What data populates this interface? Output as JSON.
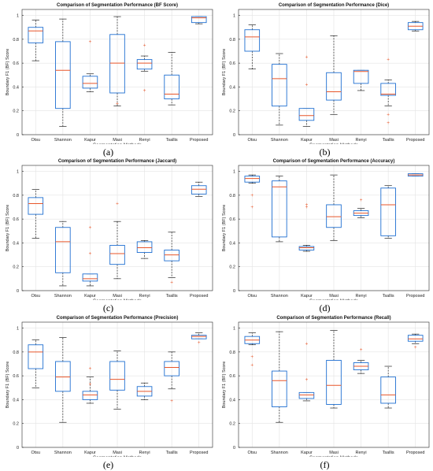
{
  "chart_data": [
    {
      "type": "box",
      "caption": "(a)",
      "title": "Comparison of Segmentation Performance (BF Score)",
      "xlabel": "Segmentation Methods",
      "ylabel": "Boundary F1 (BF) Score",
      "ylim": [
        0,
        1.05
      ],
      "yticks": [
        "0",
        "0.2",
        "0.4",
        "0.6",
        "0.8",
        "1"
      ],
      "grid": true,
      "categories": [
        "Otsu",
        "Shannon",
        "Kapur",
        "Masi",
        "Renyi",
        "Tsallis",
        "Proposed"
      ],
      "boxes": [
        {
          "min": 0.62,
          "q1": 0.77,
          "median": 0.87,
          "q3": 0.9,
          "max": 0.96,
          "outliers": []
        },
        {
          "min": 0.07,
          "q1": 0.22,
          "median": 0.54,
          "q3": 0.78,
          "max": 0.97,
          "outliers": []
        },
        {
          "min": 0.36,
          "q1": 0.39,
          "median": 0.43,
          "q3": 0.49,
          "max": 0.51,
          "outliers": [
            0.78
          ]
        },
        {
          "min": 0.24,
          "q1": 0.35,
          "median": 0.6,
          "q3": 0.84,
          "max": 0.99,
          "outliers": [
            0.26
          ]
        },
        {
          "min": 0.53,
          "q1": 0.55,
          "median": 0.6,
          "q3": 0.63,
          "max": 0.66,
          "outliers": [
            0.75,
            0.37
          ]
        },
        {
          "min": 0.25,
          "q1": 0.3,
          "median": 0.34,
          "q3": 0.5,
          "max": 0.69,
          "outliers": []
        },
        {
          "min": 0.93,
          "q1": 0.94,
          "median": 0.98,
          "q3": 0.99,
          "max": 0.99,
          "outliers": []
        }
      ]
    },
    {
      "type": "box",
      "caption": "(b)",
      "title": "Comparison of Segmentation Performance (Dice)",
      "xlabel": "Segmentation Methods",
      "ylabel": "Boundary F1 (BF) Score",
      "ylim": [
        0,
        1.05
      ],
      "yticks": [
        "0",
        "0.2",
        "0.4",
        "0.6",
        "0.8",
        "1"
      ],
      "grid": true,
      "categories": [
        "Otsu",
        "Shannon",
        "Kapur",
        "Masi",
        "Renyi",
        "Tsallis",
        "Proposed"
      ],
      "boxes": [
        {
          "min": 0.55,
          "q1": 0.7,
          "median": 0.82,
          "q3": 0.88,
          "max": 0.92,
          "outliers": []
        },
        {
          "min": 0.08,
          "q1": 0.24,
          "median": 0.47,
          "q3": 0.59,
          "max": 0.68,
          "outliers": []
        },
        {
          "min": 0.07,
          "q1": 0.12,
          "median": 0.16,
          "q3": 0.22,
          "max": 0.22,
          "outliers": [
            0.65,
            0.42
          ]
        },
        {
          "min": 0.17,
          "q1": 0.29,
          "median": 0.36,
          "q3": 0.52,
          "max": 0.83,
          "outliers": []
        },
        {
          "min": 0.37,
          "q1": 0.43,
          "median": 0.53,
          "q3": 0.54,
          "max": 0.54,
          "outliers": []
        },
        {
          "min": 0.24,
          "q1": 0.33,
          "median": 0.34,
          "q3": 0.43,
          "max": 0.46,
          "outliers": [
            0.63,
            0.17,
            0.1
          ]
        },
        {
          "min": 0.87,
          "q1": 0.88,
          "median": 0.91,
          "q3": 0.94,
          "max": 0.95,
          "outliers": []
        }
      ]
    },
    {
      "type": "box",
      "caption": "(c)",
      "title": "Comparison of Segmentation Performance (Jaccard)",
      "xlabel": "Segmentation Methods",
      "ylabel": "Boundary F1 (BF) Score",
      "ylim": [
        0,
        1.05
      ],
      "yticks": [
        "0",
        "0.2",
        "0.4",
        "0.6",
        "0.8",
        "1"
      ],
      "grid": true,
      "categories": [
        "Otsu",
        "Shannon",
        "Kapur",
        "Masi",
        "Renyi",
        "Tsallis",
        "Proposed"
      ],
      "boxes": [
        {
          "min": 0.44,
          "q1": 0.64,
          "median": 0.73,
          "q3": 0.78,
          "max": 0.85,
          "outliers": []
        },
        {
          "min": 0.04,
          "q1": 0.15,
          "median": 0.41,
          "q3": 0.53,
          "max": 0.58,
          "outliers": []
        },
        {
          "min": 0.04,
          "q1": 0.08,
          "median": 0.1,
          "q3": 0.14,
          "max": 0.14,
          "outliers": [
            0.53,
            0.31
          ]
        },
        {
          "min": 0.1,
          "q1": 0.22,
          "median": 0.31,
          "q3": 0.38,
          "max": 0.58,
          "outliers": [
            0.73
          ]
        },
        {
          "min": 0.27,
          "q1": 0.32,
          "median": 0.36,
          "q3": 0.41,
          "max": 0.42,
          "outliers": []
        },
        {
          "min": 0.11,
          "q1": 0.25,
          "median": 0.3,
          "q3": 0.34,
          "max": 0.49,
          "outliers": [
            0.07
          ]
        },
        {
          "min": 0.79,
          "q1": 0.81,
          "median": 0.85,
          "q3": 0.88,
          "max": 0.91,
          "outliers": []
        }
      ]
    },
    {
      "type": "box",
      "caption": "(d)",
      "title": "Comparison of Segmentation Performance (Accuracy)",
      "xlabel": "Segmentation Methods",
      "ylabel": "Boundary F1 (BF) Score",
      "ylim": [
        0,
        1.05
      ],
      "yticks": [
        "0",
        "0.2",
        "0.4",
        "0.6",
        "0.8",
        "1"
      ],
      "grid": true,
      "categories": [
        "Otsu",
        "Shannon",
        "Kapur",
        "Masi",
        "Renyi",
        "Tsallis",
        "Proposed"
      ],
      "boxes": [
        {
          "min": 0.9,
          "q1": 0.91,
          "median": 0.94,
          "q3": 0.96,
          "max": 0.97,
          "outliers": [
            0.8,
            0.7
          ]
        },
        {
          "min": 0.41,
          "q1": 0.45,
          "median": 0.87,
          "q3": 0.92,
          "max": 0.96,
          "outliers": []
        },
        {
          "min": 0.33,
          "q1": 0.34,
          "median": 0.36,
          "q3": 0.37,
          "max": 0.38,
          "outliers": [
            0.72,
            0.7
          ]
        },
        {
          "min": 0.42,
          "q1": 0.53,
          "median": 0.62,
          "q3": 0.72,
          "max": 0.97,
          "outliers": []
        },
        {
          "min": 0.61,
          "q1": 0.63,
          "median": 0.65,
          "q3": 0.67,
          "max": 0.69,
          "outliers": [
            0.76
          ]
        },
        {
          "min": 0.44,
          "q1": 0.46,
          "median": 0.72,
          "q3": 0.86,
          "max": 0.88,
          "outliers": []
        },
        {
          "min": 0.96,
          "q1": 0.96,
          "median": 0.97,
          "q3": 0.98,
          "max": 0.98,
          "outliers": []
        }
      ]
    },
    {
      "type": "box",
      "caption": "(e)",
      "title": "Comparison of Segmentation Performance (Precision)",
      "xlabel": "Segmentation Methods",
      "ylabel": "Boundary F1 (BF) Score",
      "ylim": [
        0,
        1.05
      ],
      "yticks": [
        "0",
        "0.2",
        "0.4",
        "0.6",
        "0.8",
        "1"
      ],
      "grid": true,
      "categories": [
        "Otsu",
        "Shannon",
        "Kapur",
        "Masi",
        "Renyi",
        "Tsallis",
        "Proposed"
      ],
      "boxes": [
        {
          "min": 0.5,
          "q1": 0.66,
          "median": 0.8,
          "q3": 0.86,
          "max": 0.9,
          "outliers": []
        },
        {
          "min": 0.21,
          "q1": 0.47,
          "median": 0.59,
          "q3": 0.72,
          "max": 0.92,
          "outliers": []
        },
        {
          "min": 0.37,
          "q1": 0.4,
          "median": 0.44,
          "q3": 0.47,
          "max": 0.59,
          "outliers": [
            0.66,
            0.53
          ]
        },
        {
          "min": 0.32,
          "q1": 0.48,
          "median": 0.57,
          "q3": 0.72,
          "max": 0.81,
          "outliers": []
        },
        {
          "min": 0.4,
          "q1": 0.43,
          "median": 0.47,
          "q3": 0.51,
          "max": 0.54,
          "outliers": []
        },
        {
          "min": 0.49,
          "q1": 0.6,
          "median": 0.67,
          "q3": 0.72,
          "max": 0.8,
          "outliers": [
            0.39
          ]
        },
        {
          "min": 0.91,
          "q1": 0.91,
          "median": 0.93,
          "q3": 0.94,
          "max": 0.96,
          "outliers": [
            0.88
          ]
        }
      ]
    },
    {
      "type": "box",
      "caption": "(f)",
      "title": "Comparison of Segmentation Performance (Recall)",
      "xlabel": "Segmentation Methods",
      "ylabel": "Boundary F1 (BF) Score",
      "ylim": [
        0,
        1.05
      ],
      "yticks": [
        "0",
        "0.2",
        "0.4",
        "0.6",
        "0.8",
        "1"
      ],
      "grid": true,
      "categories": [
        "Otsu",
        "Shannon",
        "Kapur",
        "Masi",
        "Renyi",
        "Tsallis",
        "Proposed"
      ],
      "boxes": [
        {
          "min": 0.86,
          "q1": 0.87,
          "median": 0.9,
          "q3": 0.93,
          "max": 0.96,
          "outliers": [
            0.76,
            0.69
          ]
        },
        {
          "min": 0.21,
          "q1": 0.34,
          "median": 0.56,
          "q3": 0.64,
          "max": 0.97,
          "outliers": []
        },
        {
          "min": 0.39,
          "q1": 0.41,
          "median": 0.44,
          "q3": 0.46,
          "max": 0.46,
          "outliers": [
            0.87,
            0.57
          ]
        },
        {
          "min": 0.33,
          "q1": 0.36,
          "median": 0.52,
          "q3": 0.73,
          "max": 0.98,
          "outliers": []
        },
        {
          "min": 0.62,
          "q1": 0.65,
          "median": 0.68,
          "q3": 0.71,
          "max": 0.73,
          "outliers": [
            0.82
          ]
        },
        {
          "min": 0.33,
          "q1": 0.37,
          "median": 0.44,
          "q3": 0.59,
          "max": 0.68,
          "outliers": []
        },
        {
          "min": 0.87,
          "q1": 0.89,
          "median": 0.91,
          "q3": 0.94,
          "max": 0.95,
          "outliers": [
            0.84
          ]
        }
      ]
    }
  ]
}
